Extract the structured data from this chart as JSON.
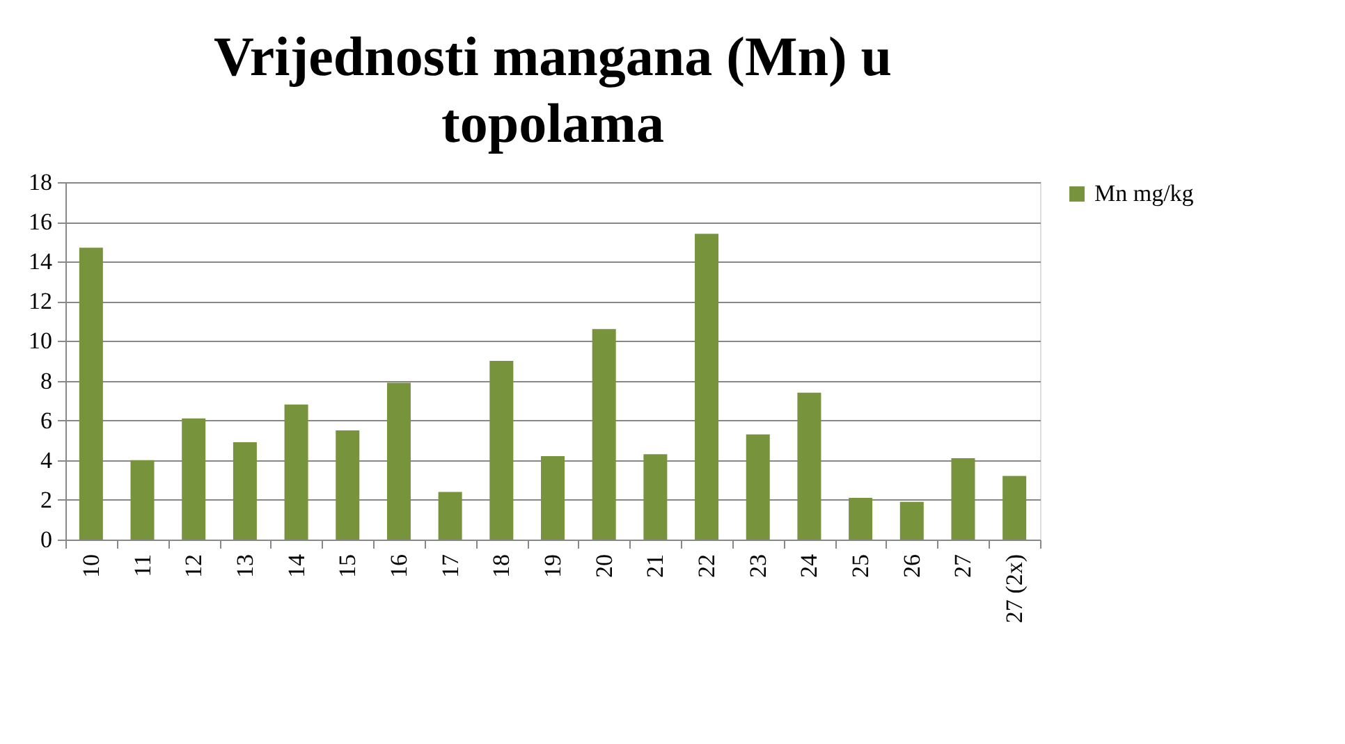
{
  "chart_data": {
    "type": "bar",
    "title": "Vrijednosti mangana (Mn) u topolama",
    "categories": [
      "10",
      "11",
      "12",
      "13",
      "14",
      "15",
      "16",
      "17",
      "18",
      "19",
      "20",
      "21",
      "22",
      "23",
      "24",
      "25",
      "26",
      "27",
      "27 (2x)"
    ],
    "series": [
      {
        "name": "Mn  mg/kg",
        "color": "#77933c",
        "values": [
          14.7,
          4.0,
          6.1,
          4.9,
          6.8,
          5.5,
          7.9,
          2.4,
          9.0,
          4.2,
          10.6,
          4.3,
          15.4,
          5.3,
          7.4,
          2.1,
          1.9,
          4.1,
          3.2
        ]
      }
    ],
    "ylim": [
      0,
      18
    ],
    "yticks": [
      0,
      2,
      4,
      6,
      8,
      10,
      12,
      14,
      16,
      18
    ],
    "grid": "y",
    "legend": "right"
  }
}
